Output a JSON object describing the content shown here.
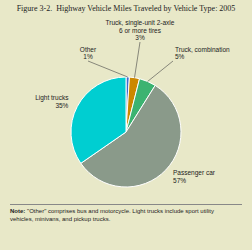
{
  "chart_data": {
    "type": "pie",
    "title": "Figure 3-2.  Highway Vehicle Miles Traveled by Vehicle Type: 2005",
    "categories": [
      "Other",
      "Truck, single-unit 2-axle\n6 or more tires",
      "Truck, combination",
      "Passenger car",
      "Light trucks"
    ],
    "values": [
      1,
      3,
      5,
      57,
      35
    ],
    "value_labels": [
      "1%",
      "3%",
      "5%",
      "57%",
      "35%"
    ],
    "colors": [
      "#4169CD",
      "#CC8800",
      "#3CB371",
      "#8A9A8A",
      "#00CED1"
    ],
    "annotations": [
      "Note:",
      "\"Other\" comprises bus and motorcycle. Light trucks include sport utility\nvehicles, minivans, and pickup trucks."
    ],
    "data_labels": true
  }
}
